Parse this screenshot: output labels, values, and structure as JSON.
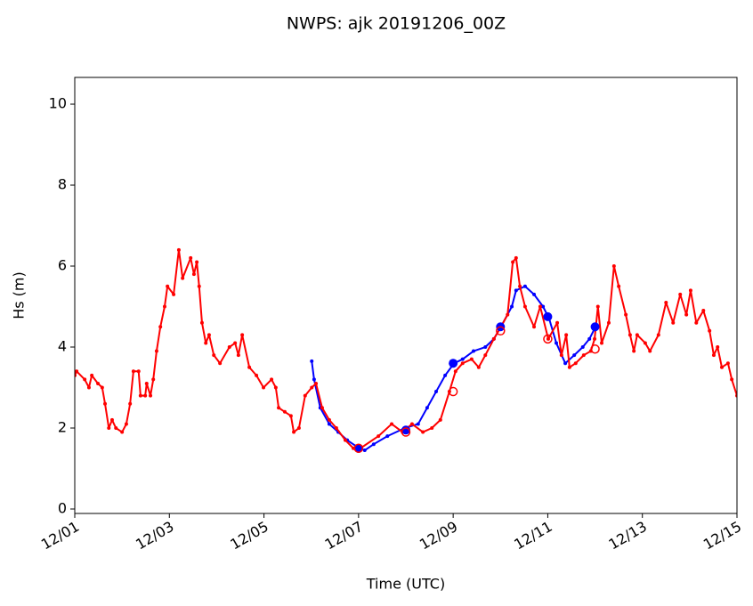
{
  "chart_data": {
    "type": "line",
    "title": "NWPS: ajk 20191206_00Z",
    "xlabel": "Time (UTC)",
    "ylabel": "Hs (m)",
    "xlim": [
      0,
      14
    ],
    "xticks": [
      {
        "value": 0,
        "label": "12/01"
      },
      {
        "value": 2,
        "label": "12/03"
      },
      {
        "value": 4,
        "label": "12/05"
      },
      {
        "value": 6,
        "label": "12/07"
      },
      {
        "value": 8,
        "label": "12/09"
      },
      {
        "value": 10,
        "label": "12/11"
      },
      {
        "value": 12,
        "label": "12/13"
      },
      {
        "value": 14,
        "label": "12/15"
      }
    ],
    "ylim": [
      -0.11,
      10.66
    ],
    "yticks": [
      0,
      2,
      4,
      6,
      8,
      10
    ],
    "grid": false,
    "series": [
      {
        "color": "#0000ff",
        "line": true,
        "marker": "filled",
        "marker_size": 2,
        "x": [
          5.01,
          5.06,
          5.19,
          5.38,
          5.57,
          5.76,
          5.95,
          6.13,
          6.32,
          6.61,
          6.98,
          7.26,
          7.45,
          7.64,
          7.83,
          8.02,
          8.2,
          8.43,
          8.68,
          8.86,
          9.01,
          9.24,
          9.33,
          9.52,
          9.71,
          9.9,
          10.03,
          10.18,
          10.37,
          10.56,
          10.74,
          10.88,
          11.01
        ],
        "values": [
          3.65,
          3.2,
          2.5,
          2.1,
          1.9,
          1.7,
          1.55,
          1.45,
          1.6,
          1.8,
          2.0,
          2.1,
          2.5,
          2.9,
          3.3,
          3.6,
          3.7,
          3.9,
          4.0,
          4.2,
          4.5,
          5.0,
          5.4,
          5.5,
          5.3,
          5.0,
          4.7,
          4.1,
          3.6,
          3.8,
          4.0,
          4.2,
          4.5
        ]
      },
      {
        "color": "#ff0000",
        "line": true,
        "marker": "filled",
        "marker_size": 2,
        "x": [
          0,
          0.04,
          0.21,
          0.3,
          0.36,
          0.49,
          0.58,
          0.64,
          0.72,
          0.79,
          0.87,
          1.0,
          1.09,
          1.17,
          1.24,
          1.35,
          1.39,
          1.49,
          1.52,
          1.6,
          1.66,
          1.73,
          1.81,
          1.9,
          1.96,
          2.09,
          2.2,
          2.28,
          2.45,
          2.52,
          2.58,
          2.63,
          2.69,
          2.77,
          2.84,
          2.94,
          3.07,
          3.27,
          3.39,
          3.46,
          3.54,
          3.69,
          3.84,
          3.99,
          4.16,
          4.25,
          4.31,
          4.44,
          4.57,
          4.63,
          4.74,
          4.87,
          5.01,
          5.1,
          5.23,
          5.38,
          5.53,
          5.72,
          5.89,
          6.04,
          6.42,
          6.7,
          6.93,
          7.13,
          7.36,
          7.55,
          7.73,
          7.92,
          8.05,
          8.2,
          8.39,
          8.54,
          8.68,
          8.86,
          9.01,
          9.15,
          9.26,
          9.33,
          9.41,
          9.52,
          9.71,
          9.84,
          10.01,
          10.2,
          10.29,
          10.39,
          10.46,
          10.59,
          10.76,
          10.91,
          10.99,
          11.06,
          11.14,
          11.29,
          11.4,
          11.5,
          11.65,
          11.74,
          11.82,
          11.89,
          12.06,
          12.16,
          12.34,
          12.5,
          12.65,
          12.8,
          12.93,
          13.02,
          13.14,
          13.29,
          13.42,
          13.51,
          13.59,
          13.68,
          13.81,
          13.89,
          14.0
        ],
        "values": [
          3.3,
          3.4,
          3.2,
          3.0,
          3.3,
          3.1,
          3.0,
          2.6,
          2.0,
          2.2,
          2.0,
          1.9,
          2.1,
          2.6,
          3.4,
          3.4,
          2.8,
          2.8,
          3.1,
          2.8,
          3.2,
          3.9,
          4.5,
          5.0,
          5.5,
          5.3,
          6.4,
          5.7,
          6.2,
          5.8,
          6.1,
          5.5,
          4.6,
          4.1,
          4.3,
          3.8,
          3.6,
          4.0,
          4.1,
          3.8,
          4.3,
          3.5,
          3.3,
          3.0,
          3.2,
          3.0,
          2.5,
          2.4,
          2.3,
          1.9,
          2.0,
          2.8,
          3.0,
          3.1,
          2.5,
          2.2,
          2.0,
          1.7,
          1.5,
          1.5,
          1.8,
          2.1,
          1.9,
          2.1,
          1.9,
          2.0,
          2.2,
          2.9,
          3.4,
          3.6,
          3.7,
          3.5,
          3.8,
          4.2,
          4.5,
          4.8,
          6.1,
          6.2,
          5.5,
          5.0,
          4.5,
          5.0,
          4.2,
          4.6,
          3.8,
          4.3,
          3.5,
          3.6,
          3.8,
          3.9,
          4.2,
          5.0,
          4.1,
          4.6,
          6.0,
          5.5,
          4.8,
          4.3,
          3.9,
          4.3,
          4.1,
          3.9,
          4.3,
          5.1,
          4.6,
          5.3,
          4.8,
          5.4,
          4.6,
          4.9,
          4.4,
          3.8,
          4.0,
          3.5,
          3.6,
          3.2,
          2.8
        ]
      },
      {
        "color": "#0000ff",
        "line": false,
        "marker": "filled",
        "marker_size": 5,
        "x": [
          6,
          7,
          8,
          9,
          10,
          11
        ],
        "values": [
          1.5,
          1.95,
          3.6,
          4.5,
          4.75,
          4.5
        ]
      },
      {
        "color": "#ff0000",
        "line": false,
        "marker": "open",
        "marker_size": 4.5,
        "x": [
          6,
          7,
          8,
          9,
          10,
          11
        ],
        "values": [
          1.5,
          1.9,
          2.9,
          4.4,
          4.2,
          3.95
        ]
      }
    ]
  }
}
